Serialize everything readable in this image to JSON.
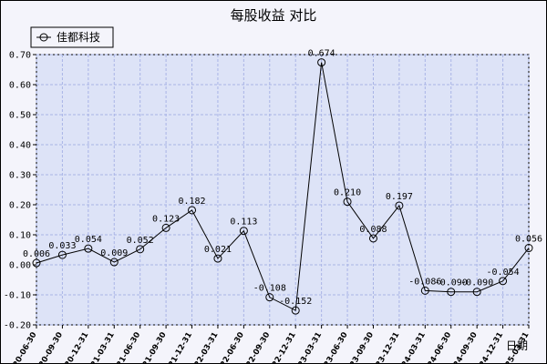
{
  "chart_data": {
    "type": "line",
    "title": "每股收益  对比",
    "xlabel": "日期",
    "ylabel": "",
    "ylim": [
      -0.2,
      0.7
    ],
    "yticks": [
      "0.70",
      "0.60",
      "0.50",
      "0.40",
      "0.30",
      "0.20",
      "0.10",
      "0.00",
      "-0.10",
      "-0.20"
    ],
    "ytick_values": [
      0.7,
      0.6,
      0.5,
      0.4,
      0.3,
      0.2,
      0.1,
      0.0,
      -0.1,
      -0.2
    ],
    "grid": true,
    "legend_position": "top-left",
    "categories": [
      "2020-06-30",
      "2020-09-30",
      "2020-12-31",
      "2021-03-31",
      "2021-06-30",
      "2021-09-30",
      "2021-12-31",
      "2022-03-31",
      "2022-06-30",
      "2022-09-30",
      "2022-12-31",
      "2023-03-31",
      "2023-06-30",
      "2023-09-30",
      "2023-12-31",
      "2024-03-31",
      "2024-06-30",
      "2024-09-30",
      "2024-12-31",
      "2025-03-31"
    ],
    "series": [
      {
        "name": "佳都科技",
        "values": [
          0.006,
          0.033,
          0.054,
          0.009,
          0.052,
          0.123,
          0.182,
          0.021,
          0.113,
          -0.108,
          -0.152,
          0.674,
          0.21,
          0.088,
          0.197,
          -0.086,
          -0.09,
          -0.09,
          -0.054,
          0.056
        ],
        "labels": [
          "0.006",
          "0.033",
          "0.054",
          "0.009",
          "0.052",
          "0.123",
          "0.182",
          "0.021",
          "0.113",
          "-0.108",
          "-0.152",
          "0.674",
          "0.210",
          "0.088",
          "0.197",
          "-0.086",
          "-0.090",
          "-0.090",
          "-0.054",
          "0.056"
        ]
      }
    ],
    "colors": {
      "plot_bg": "#dde3f7",
      "grid": "#a9b4e6",
      "line": "#000000"
    }
  }
}
